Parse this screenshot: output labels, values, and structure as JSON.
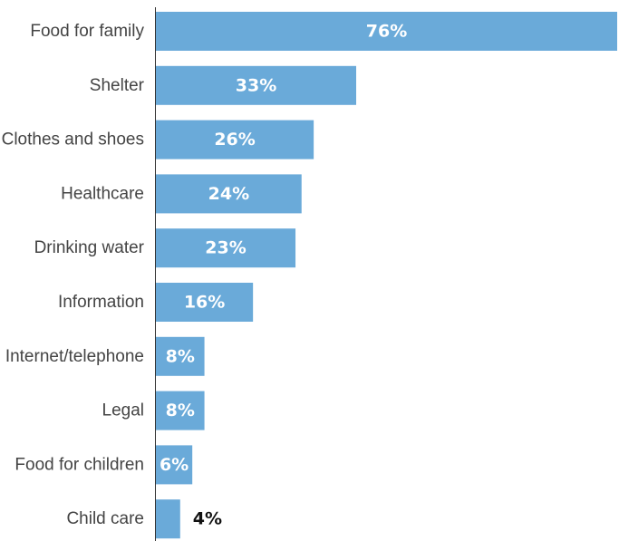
{
  "chart_data": {
    "type": "bar",
    "orientation": "horizontal",
    "categories": [
      "Food for family",
      "Shelter",
      "Clothes and shoes",
      "Healthcare",
      "Drinking water",
      "Information",
      "Internet/telephone",
      "Legal",
      "Food for children",
      "Child care"
    ],
    "values": [
      76,
      33,
      26,
      24,
      23,
      16,
      8,
      8,
      6,
      4
    ],
    "value_labels": [
      "76%",
      "33%",
      "26%",
      "24%",
      "23%",
      "16%",
      "8%",
      "8%",
      "6%",
      "4%"
    ],
    "title": "",
    "xlabel": "",
    "ylabel": "",
    "xlim": [
      0,
      76
    ],
    "grid": false,
    "legend": "none",
    "colors": {
      "bar": "#6aaad9",
      "label_inside": "#ffffff",
      "label_outside": "#111111",
      "category_text": "#444444",
      "axis": "#333333"
    }
  }
}
